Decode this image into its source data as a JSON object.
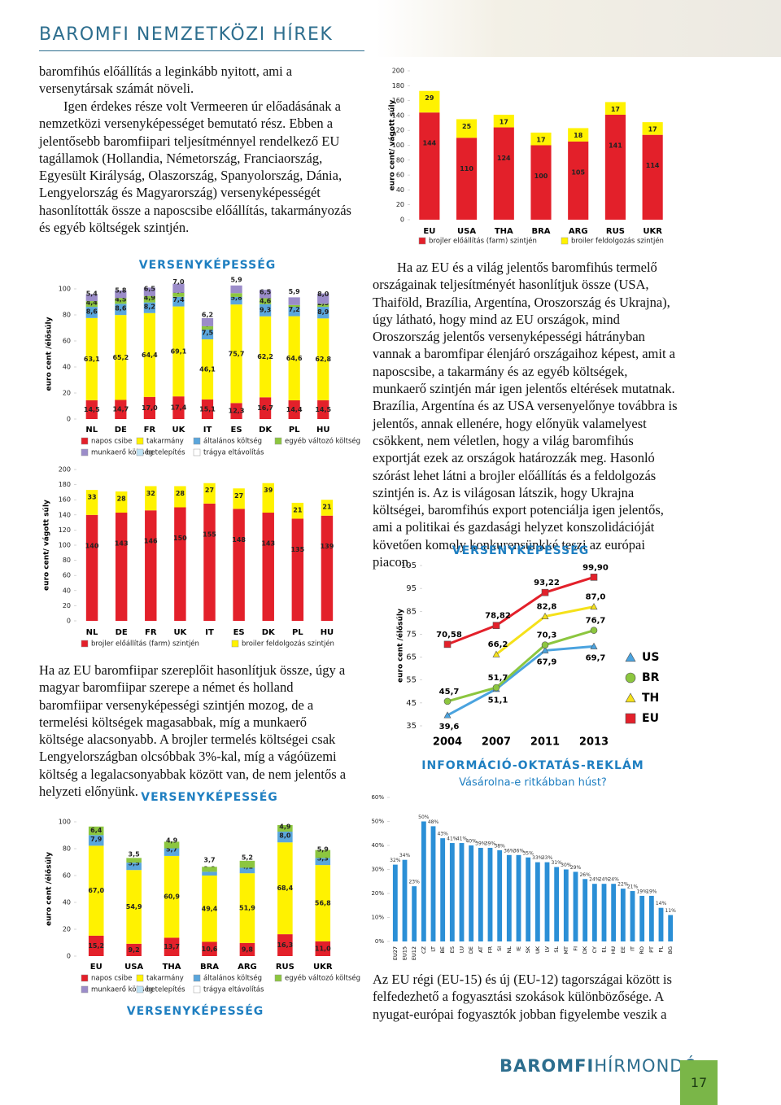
{
  "header": {
    "title": "BAROMFI NEMZETKÖZI HÍREK"
  },
  "paragraphs": [
    "baromfihús előállítás a leginkább nyitott, ami a versenytársak számát növeli.",
    "Igen érdekes része volt Vermeeren úr előadásának a nemzetközi versenyképességet bemutató rész. Ebben a jelentősebb baromfiipari teljesítménnyel rendelkező EU tagállamok (Hollandia, Németország, Franciaország, Egyesült Királyság, Olaszország, Spanyolország, Dánia, Lengyelország és Magyarország) versenyképességét hasonlították össze a naposcsibe előállítás, takarmányozás és egyéb költségek szintjén.",
    "Ha az EU és a világ jelentős baromfihús termelő országainak teljesítményét hasonlítjuk össze (USA, Thaiföld, Brazília, Argentína, Oroszország és Ukrajna), úgy látható, hogy mind az EU országok, mind Oroszország jelentős versenyképességi hátrányban vannak a baromfipar élenjáró országaihoz képest, amit a naposcsibe, a takarmány és az egyéb költségek, munkaerő szintjén már igen jelentős eltérések mutatnak. Brazília, Argentína és az USA versenyelőnye továbbra is jelentős, annak ellenére, hogy előnyük valamelyest csökkent, nem véletlen, hogy a világ baromfihús exportját ezek az országok határozzák meg. Hasonló szórást lehet látni a brojler előállítás és a feldolgozás szintjén is. Az is világosan látszik, hogy Ukrajna költségei, baromfihús export potenciálja igen jelentős, ami a politikai és gazdasági helyzet konszolidációját követően komoly konkurensünkké teszi az európai piacon.",
    "Ha az EU baromfiipar szereplőit hasonlítjuk össze, úgy a magyar baromfiipar szerepe a német és holland baromfiipar versenyképességi szintjén mozog, de a termelési költségek magasabbak, míg a munkaerő költsége alacsonyabb. A brojler termelés költségei csak Lengyelországban olcsóbbak 3%-kal, míg a vágóüzemi költség a legalacsonyabbak között van, de nem jelentős a helyzeti előnyünk.",
    "Az EU régi (EU-15) és új (EU-12) tagországai között is felfedezhető a fogyasztási szokások különbözősége. A nyugat-európai fogyasztók jobban figyelembe veszik a"
  ],
  "caption": "VERSENYKÉPESSÉG",
  "chart_data": [
    {
      "type": "stacked_bar",
      "ylabel": "euro cent/ vágott súly",
      "categories": [
        "EU",
        "USA",
        "THA",
        "BRA",
        "ARG",
        "RUS",
        "UKR"
      ],
      "series": [
        {
          "name": "brojler előállítás (farm) szintjén",
          "color": "#e3202a",
          "values": [
            144,
            110,
            124,
            100,
            105,
            141,
            114
          ]
        },
        {
          "name": "broiler feldolgozás szintjén",
          "color": "#fff200",
          "values": [
            29,
            25,
            17,
            17,
            18,
            17,
            17
          ]
        }
      ],
      "ylim": [
        0,
        200
      ],
      "yticks": [
        0,
        20,
        40,
        60,
        80,
        100,
        120,
        140,
        160,
        180,
        200
      ]
    },
    {
      "type": "stacked_bar",
      "title": "VERSENYKÉPESSÉG",
      "ylabel": "euro cent /élősúly",
      "categories": [
        "NL",
        "DE",
        "FR",
        "UK",
        "IT",
        "ES",
        "DK",
        "PL",
        "HU"
      ],
      "series": [
        {
          "name": "napos csibe",
          "color": "#e3202a",
          "values": [
            14.5,
            14.7,
            17.0,
            17.4,
            15.1,
            12.3,
            16.7,
            14.4,
            14.5
          ],
          "value_labels": [
            "14,5",
            "14,7",
            "17,0",
            "17,4",
            "15,1",
            "12,3",
            "16,7",
            "14,4",
            "14,5"
          ]
        },
        {
          "name": "takarmány",
          "color": "#fff200",
          "values": [
            63.1,
            65.2,
            64.4,
            69.1,
            46.1,
            75.7,
            62.2,
            64.6,
            62.8
          ],
          "value_labels": [
            "63,1",
            "65,2",
            "64,4",
            "69,1",
            "46,1",
            "75,7",
            "62,2",
            "64,6",
            "62,8"
          ]
        },
        {
          "name": "általános költség",
          "color": "#5aa6dc",
          "values": [
            8.6,
            8.6,
            8.2,
            7.4,
            7.5,
            5.8,
            9.3,
            7.2,
            8.9
          ],
          "value_labels": [
            "8,6",
            "8,6",
            "8,2",
            "7,4",
            "7,5",
            "5,8",
            "9,3",
            "7,2",
            "8,9"
          ]
        },
        {
          "name": "egyéb változó költség",
          "color": "#8cc63f",
          "values": [
            4.4,
            4.5,
            4.9,
            3.1,
            2.6,
            2.9,
            4.6,
            1.4,
            2.3
          ],
          "value_labels": [
            "4,4",
            "4,5",
            "4,9",
            "3,1",
            "2,6",
            "2,9",
            "4,6",
            "1,4",
            "2,3"
          ]
        },
        {
          "name": "munkaerő költség",
          "color": "#9b8cc9",
          "values": [
            5.4,
            5.8,
            6.5,
            7.0,
            6.2,
            5.9,
            6.5,
            5.9,
            8.0
          ],
          "value_labels": [
            "5,4",
            "5,8",
            "6,5",
            "7,0",
            "6,2",
            "5,9",
            "6,5",
            "5,9",
            "8,0"
          ]
        },
        {
          "name": "betelepítés",
          "color": "#bfe3f5",
          "values": [
            null,
            null,
            null,
            null,
            null,
            null,
            null,
            null,
            null
          ]
        },
        {
          "name": "trágya eltávolítás",
          "color": "#ffffff",
          "values": [
            null,
            null,
            null,
            null,
            null,
            null,
            null,
            null,
            null
          ]
        }
      ],
      "ylim": [
        0,
        100
      ],
      "yticks": [
        0,
        20,
        40,
        60,
        80,
        100
      ]
    },
    {
      "type": "stacked_bar",
      "ylabel": "euro cent/ vágott súly",
      "categories": [
        "NL",
        "DE",
        "FR",
        "UK",
        "IT",
        "ES",
        "DK",
        "PL",
        "HU"
      ],
      "series": [
        {
          "name": "brojler előállítás (farm) szintjén",
          "color": "#e3202a",
          "values": [
            140,
            143,
            146,
            150,
            155,
            148,
            143,
            135,
            139
          ]
        },
        {
          "name": "broiler feldolgozás szintjén",
          "color": "#fff200",
          "values": [
            33,
            28,
            32,
            28,
            27,
            27,
            39,
            21,
            21
          ]
        }
      ],
      "ylim": [
        0,
        200
      ],
      "yticks": [
        0,
        20,
        40,
        60,
        80,
        100,
        120,
        140,
        160,
        180,
        200
      ]
    },
    {
      "type": "stacked_bar",
      "title": "VERSENYKÉPESSÉG",
      "ylabel": "euro cent /élősúly",
      "categories": [
        "EU",
        "USA",
        "THA",
        "BRA",
        "ARG",
        "RUS",
        "UKR"
      ],
      "series": [
        {
          "name": "napos csibe",
          "color": "#e3202a",
          "values": [
            15.2,
            9.2,
            13.7,
            10.6,
            9.8,
            16.3,
            11.0
          ],
          "value_labels": [
            "15,2",
            "9,2",
            "13,7",
            "10,6",
            "9,8",
            "16,3",
            "11,0"
          ]
        },
        {
          "name": "takarmány",
          "color": "#fff200",
          "values": [
            67.0,
            54.9,
            60.9,
            49.4,
            51.9,
            68.4,
            56.8
          ],
          "value_labels": [
            "67,0",
            "54,9",
            "60,9",
            "49,4",
            "51,9",
            "68,4",
            "56,8"
          ]
        },
        {
          "name": "általános költség",
          "color": "#5aa6dc",
          "values": [
            7.9,
            5.5,
            5.7,
            2.8,
            4.1,
            8.0,
            5.3
          ],
          "value_labels": [
            "7,9",
            "5,5",
            "5,7",
            "2,8",
            "4,1",
            "8,0",
            "5,3"
          ]
        },
        {
          "name": "egyéb változó költség",
          "color": "#8cc63f",
          "values": [
            6.4,
            3.5,
            4.9,
            3.7,
            5.2,
            4.9,
            5.9
          ],
          "value_labels": [
            "6,4",
            "3,5",
            "4,9",
            "3,7",
            "5,2",
            "4,9",
            "5,9"
          ]
        },
        {
          "name": "munkaerő költség",
          "color": "#9b8cc9",
          "values": [
            null,
            null,
            null,
            null,
            null,
            null,
            null
          ]
        },
        {
          "name": "betelepítés",
          "color": "#bfe3f5",
          "values": [
            null,
            null,
            null,
            null,
            null,
            null,
            null
          ]
        },
        {
          "name": "trágya eltávolítás",
          "color": "#ffffff",
          "values": [
            null,
            null,
            null,
            null,
            null,
            null,
            null
          ]
        }
      ],
      "ylim": [
        0,
        100
      ],
      "yticks": [
        0,
        20,
        40,
        60,
        80,
        100
      ]
    },
    {
      "type": "line",
      "title": "VERSENYKÉPESSÉG",
      "ylabel": "euro cent /élősúly",
      "categories": [
        "2004",
        "2007",
        "2011",
        "2013"
      ],
      "series": [
        {
          "name": "US",
          "color": "#4aa3df",
          "marker": "triangle",
          "values": [
            39.6,
            51.1,
            67.9,
            69.7
          ],
          "value_labels": [
            "39,6",
            "51,1",
            "67,9",
            "69,7"
          ]
        },
        {
          "name": "BR",
          "color": "#8cc63f",
          "marker": "circle",
          "values": [
            45.7,
            51.7,
            70.3,
            76.7
          ],
          "value_labels": [
            "45,7",
            "51,7",
            "70,3",
            "76,7"
          ]
        },
        {
          "name": "TH",
          "color": "#f5e11a",
          "marker": "triangle",
          "values": [
            null,
            66.2,
            82.8,
            87.0
          ],
          "value_labels": [
            null,
            "66,2",
            "82,8",
            "87,0"
          ]
        },
        {
          "name": "EU",
          "color": "#e3202a",
          "marker": "square",
          "values": [
            70.58,
            78.82,
            93.22,
            99.9
          ],
          "value_labels": [
            "70,58",
            "78,82",
            "93,22",
            "99,90"
          ]
        }
      ],
      "ylim": [
        35,
        105
      ],
      "yticks": [
        35,
        45,
        55,
        65,
        75,
        85,
        95,
        105
      ]
    },
    {
      "type": "bar",
      "title": "INFORMÁCIÓ-OKTATÁS-REKLÁM",
      "subtitle": "Vásárolna-e ritkábban húst?",
      "color": "#2b8fd6",
      "categories": [
        "EU27",
        "EU15",
        "EU12",
        "CZ",
        "LT",
        "BE",
        "ES",
        "LU",
        "DE",
        "AT",
        "FR",
        "SI",
        "NL",
        "IE",
        "SK",
        "UK",
        "LV",
        "SL",
        "MT",
        "FI",
        "DK",
        "CY",
        "EL",
        "HU",
        "EE",
        "IT",
        "RO",
        "PT",
        "PL",
        "BG"
      ],
      "values": [
        32,
        34,
        23,
        50,
        48,
        43,
        41,
        41,
        40,
        39,
        39,
        38,
        36,
        36,
        35,
        33,
        33,
        31,
        30,
        29,
        26,
        24,
        24,
        24,
        22,
        21,
        19,
        19,
        14,
        11
      ],
      "value_labels": [
        "32%",
        "34%",
        "23%",
        "50%",
        "48%",
        "43%",
        "41%",
        "41%",
        "40%",
        "39%",
        "39%",
        "38%",
        "36%",
        "36%",
        "35%",
        "33%",
        "33%",
        "31%",
        "30%",
        "29%",
        "26%",
        "24%",
        "24%",
        "24%",
        "22%",
        "21%",
        "19%",
        "19%",
        "14%",
        "11%"
      ],
      "ylim": [
        0,
        60
      ],
      "yticks": [
        {
          "value": 0,
          "label": "0%"
        },
        {
          "value": 10,
          "label": "10%"
        },
        {
          "value": 20,
          "label": "20%"
        },
        {
          "value": 30,
          "label": "30%"
        },
        {
          "value": 40,
          "label": "40%"
        },
        {
          "value": 50,
          "label": "50%"
        },
        {
          "value": 60,
          "label": "60%"
        }
      ]
    }
  ],
  "footer": {
    "brand_bold": "BAROMFI",
    "brand_light": "HÍRMONDÓ",
    "page": "17"
  }
}
